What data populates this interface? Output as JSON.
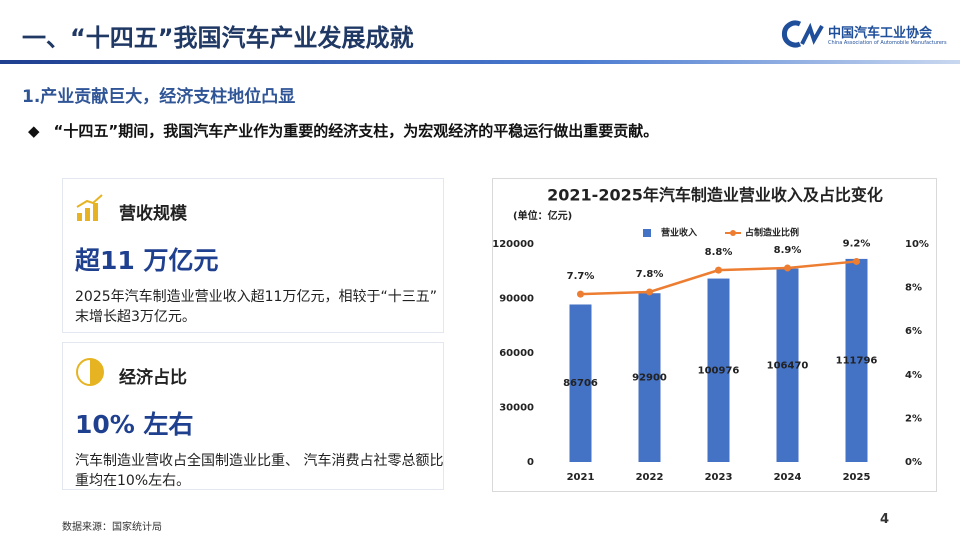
{
  "header": {
    "title": "一、“十四五”我国汽车产业发展成就",
    "logo_name": "中国汽车工业协会",
    "logo_english": "China Association of Automobile Manufacturers"
  },
  "section": {
    "title": "1.产业贡献巨大，经济支柱地位凸显",
    "bullet": "“十四五”期间，我国汽车产业作为重要的经济支柱，为宏观经济的平稳运行做出重要贡献。"
  },
  "cards": [
    {
      "heading": "营收规模",
      "highlight": "超11 万亿元",
      "text": "2025年汽车制造业营业收入超11万亿元，相较于“十三五”末增长超3万亿元。"
    },
    {
      "heading": "经济占比",
      "highlight": "10% 左右",
      "text": "汽车制造业营收占全国制造业比重、 汽车消费占社零总额比重均在10%左右。"
    }
  ],
  "footer": {
    "source": "数据来源：国家统计局",
    "page": "4"
  },
  "chart_data": {
    "type": "bar",
    "title": "2021-2025年汽车制造业营业收入及占比变化",
    "unit_label": "(单位：亿元)",
    "categories": [
      "2021",
      "2022",
      "2023",
      "2024",
      "2025"
    ],
    "series": [
      {
        "name": "营业收入",
        "color": "#4472c4",
        "values": [
          86706,
          92900,
          100976,
          106470,
          111796
        ]
      },
      {
        "name": "占制造业比例",
        "color": "#ed7d31",
        "type": "line",
        "axis": "y2",
        "values": [
          7.7,
          7.8,
          8.8,
          8.9,
          9.2
        ],
        "value_labels": [
          "7.7%",
          "7.8%",
          "8.8%",
          "8.9%",
          "9.2%"
        ]
      }
    ],
    "ylim": [
      0,
      120000
    ],
    "yticks": [
      0,
      30000,
      60000,
      90000,
      120000
    ],
    "y2lim": [
      0,
      10
    ],
    "y2ticks": [
      {
        "value": 0,
        "label": "0%"
      },
      {
        "value": 2,
        "label": "2%"
      },
      {
        "value": 4,
        "label": "4%"
      },
      {
        "value": 6,
        "label": "6%"
      },
      {
        "value": 8,
        "label": "8%"
      },
      {
        "value": 10,
        "label": "10%"
      }
    ],
    "legend": "top",
    "grid": false
  }
}
